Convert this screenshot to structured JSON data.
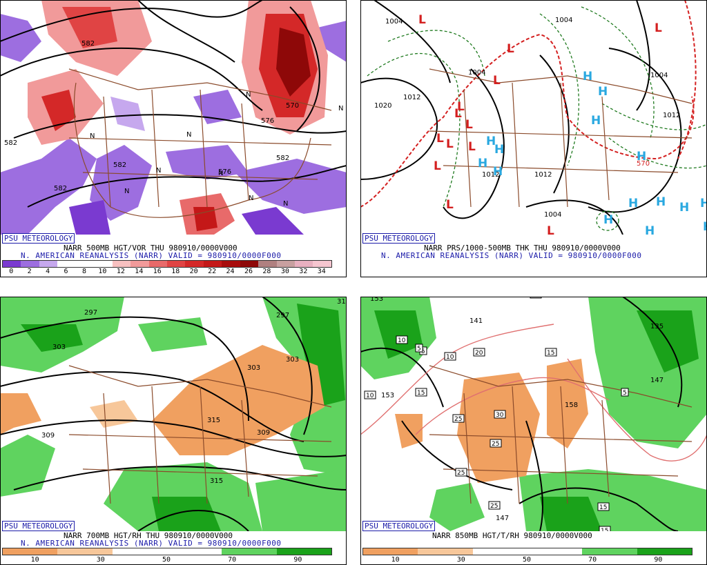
{
  "panels": [
    {
      "badge": "PSU METEOROLOGY",
      "title_line": "NARR 500MB HGT/VOR THU 980910/0000V000",
      "subtitle": "N. AMERICAN REANALYSIS (NARR) VALID = 980910/0000F000",
      "colorbar": {
        "ticks": [
          "0",
          "2",
          "4",
          "6",
          "8",
          "10",
          "12",
          "14",
          "16",
          "18",
          "20",
          "22",
          "24",
          "26",
          "28",
          "30",
          "32",
          "34"
        ],
        "colors": [
          "#7a3ad0",
          "#9d6ee0",
          "#c6a8ee",
          "#ffffff",
          "#ffffff",
          "#ffffff",
          "#f7c0c0",
          "#f19a9a",
          "#e86a6a",
          "#e04444",
          "#d42828",
          "#c41818",
          "#a80c0c",
          "#8e0808",
          "#b08080",
          "#c8a0a0",
          "#e8b0c0",
          "#f6c6d0"
        ]
      },
      "contour_labels": [
        "582",
        "582",
        "582",
        "570",
        "576",
        "582",
        "582",
        "576"
      ],
      "surface_letters": [
        "N",
        "N",
        "N",
        "N",
        "N",
        "N",
        "N",
        "N",
        "N"
      ]
    },
    {
      "badge": "PSU METEOROLOGY",
      "title_line": "NARR PRS/1000-500MB THK THU 980910/0000V000",
      "subtitle": "N. AMERICAN REANALYSIS (NARR) VALID = 980910/0000F000",
      "isobar_labels": [
        "1004",
        "1020",
        "1012",
        "1004",
        "1012",
        "1004",
        "1012",
        "1012",
        "1004",
        "570",
        "1004",
        "1012"
      ],
      "low_symbol": "L",
      "high_symbol": "H",
      "low_color": "#d42020",
      "high_color": "#29a8e0"
    },
    {
      "badge": "PSU METEOROLOGY",
      "title_line": "NARR 700MB HGT/RH THU 980910/0000V000",
      "subtitle": "N. AMERICAN REANALYSIS (NARR) VALID = 980910/0000F000",
      "contour_labels": [
        "297",
        "303",
        "303",
        "309",
        "315",
        "315",
        "309",
        "303",
        "297",
        "31"
      ],
      "colorbar": {
        "ticks": [
          "10",
          "30",
          "50",
          "70",
          "90"
        ],
        "colors": [
          "#f0a060",
          "#f7c79a",
          "#ffffff",
          "#ffffff",
          "#5fd35f",
          "#1aa21a"
        ]
      }
    },
    {
      "badge": "PSU METEOROLOGY",
      "title_line": "NARR 850MB HGT/T/RH 980910/0000V000",
      "contour_labels": [
        "153",
        "147",
        "141",
        "135",
        "158",
        "147",
        "153"
      ],
      "temp_labels": [
        "10",
        "10",
        "10",
        "15",
        "15",
        "15",
        "20",
        "25",
        "25",
        "25",
        "25",
        "30",
        "5",
        "5",
        "15",
        "5",
        "10"
      ],
      "colorbar": {
        "ticks": [
          "10",
          "30",
          "50",
          "70",
          "90"
        ],
        "colors": [
          "#f0a060",
          "#f7c79a",
          "#ffffff",
          "#ffffff",
          "#5fd35f",
          "#1aa21a"
        ]
      }
    }
  ]
}
